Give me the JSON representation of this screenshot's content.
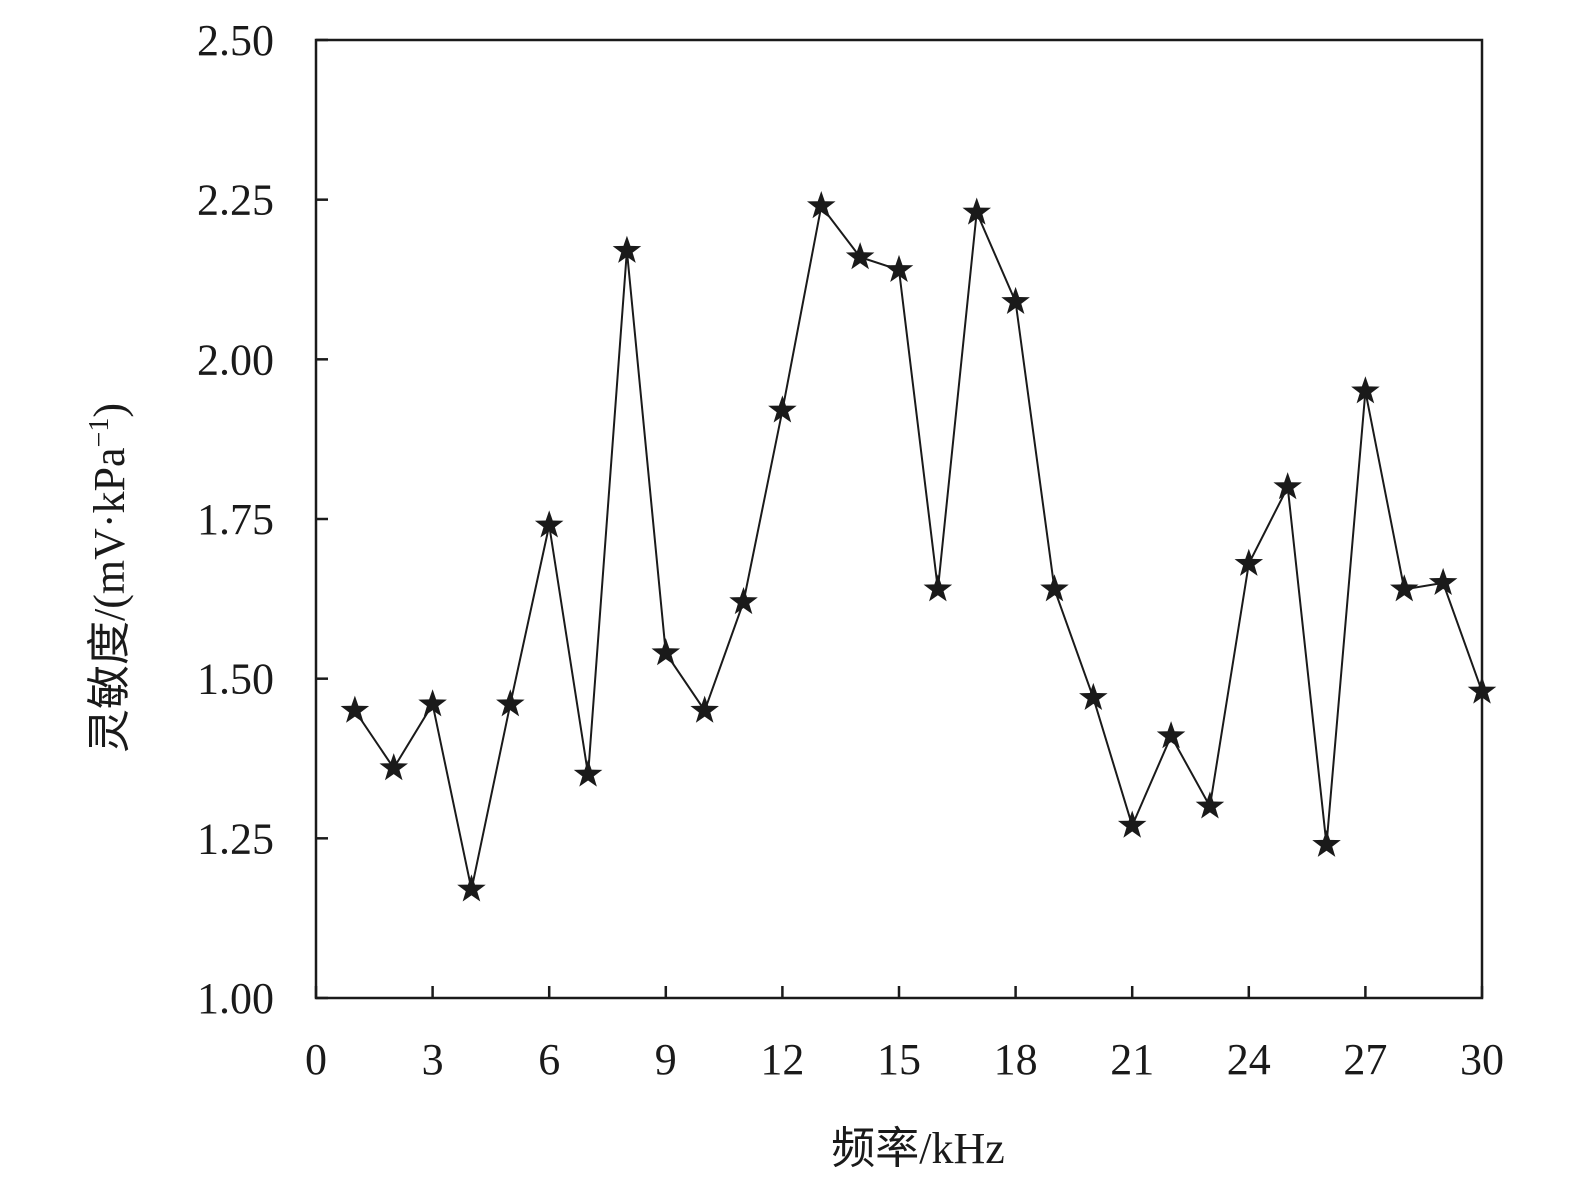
{
  "chart_data": {
    "type": "line",
    "xlabel": "频率/kHz",
    "ylabel": "灵敏度/(mV·kPa",
    "ylabel_sup": "−1",
    "ylabel_close": ")",
    "xlim": [
      0,
      30
    ],
    "ylim": [
      1.0,
      2.5
    ],
    "xticks": [
      0,
      3,
      6,
      9,
      12,
      15,
      18,
      21,
      24,
      27,
      30
    ],
    "yticks": [
      "1.00",
      "1.25",
      "1.50",
      "1.75",
      "2.00",
      "2.25",
      "2.50"
    ],
    "grid": false,
    "marker": "star",
    "color": "#1a1a1a",
    "x": [
      1,
      2,
      3,
      4,
      5,
      6,
      7,
      8,
      9,
      10,
      11,
      12,
      13,
      14,
      15,
      16,
      17,
      18,
      19,
      20,
      21,
      22,
      23,
      24,
      25,
      26,
      27,
      28,
      29,
      30
    ],
    "y": [
      1.45,
      1.36,
      1.46,
      1.17,
      1.46,
      1.74,
      1.35,
      2.17,
      1.54,
      1.45,
      1.62,
      1.92,
      2.24,
      2.16,
      2.14,
      1.64,
      2.23,
      2.09,
      1.64,
      1.47,
      1.27,
      1.41,
      1.3,
      1.68,
      1.8,
      1.24,
      1.95,
      1.64,
      1.65,
      1.48
    ]
  }
}
